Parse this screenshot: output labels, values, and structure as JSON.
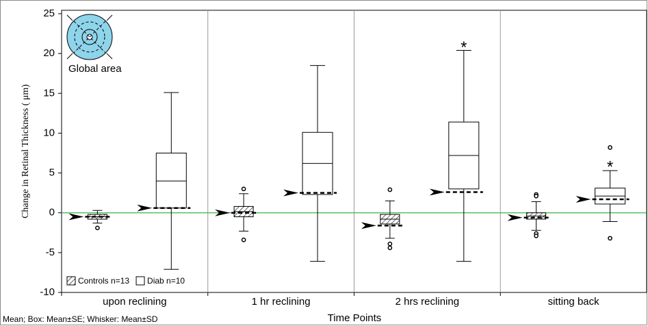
{
  "chart_data": {
    "type": "box",
    "inset_label": "Global area",
    "y_label": "Change in Retinal Thickness ( μm)",
    "x_label": "Time Points",
    "footnote": "Mean; Box: Mean±SE; Whisker: Mean±SD",
    "categories": [
      "upon reclining",
      "1 hr reclining",
      "2 hrs reclining",
      "sitting back"
    ],
    "ylim": [
      -10,
      25
    ],
    "yticks": [
      -10,
      -5,
      0,
      5,
      10,
      15,
      20,
      25
    ],
    "reference_line": {
      "value": 0,
      "color": "#3cb043"
    },
    "series": [
      {
        "name": "Controls n=13",
        "hatched": true,
        "color": "#000000",
        "mean": [
          -0.5,
          0.15,
          -0.8,
          -0.4
        ],
        "box_low": [
          -0.8,
          -0.5,
          -1.4,
          -0.8
        ],
        "box_high": [
          -0.2,
          0.8,
          -0.2,
          0.0
        ],
        "sd_low": [
          -1.3,
          -2.3,
          -3.2,
          -2.2
        ],
        "sd_high": [
          0.3,
          2.4,
          1.5,
          1.4
        ],
        "median": [
          -0.5,
          0.0,
          -1.6,
          -0.6
        ],
        "outliers": [
          [
            -1.9
          ],
          [
            3.0,
            -3.4
          ],
          [
            2.9,
            -3.9,
            -4.4
          ],
          [
            2.3,
            2.1,
            -2.6,
            -2.9
          ]
        ]
      },
      {
        "name": "Diab n=10",
        "hatched": false,
        "color": "#000000",
        "mean": [
          4.0,
          6.2,
          7.2,
          2.1
        ],
        "box_low": [
          0.6,
          2.3,
          3.0,
          1.1
        ],
        "box_high": [
          7.5,
          10.1,
          11.4,
          3.1
        ],
        "sd_low": [
          -7.1,
          -6.1,
          -6.1,
          -1.1
        ],
        "sd_high": [
          15.1,
          18.5,
          20.4,
          5.3
        ],
        "median": [
          0.6,
          2.5,
          2.6,
          1.7
        ],
        "outliers": [
          [],
          [],
          [],
          [
            8.2,
            -3.2
          ]
        ]
      }
    ],
    "annotations": [
      {
        "text": "*",
        "series": 1,
        "category": 2,
        "value": 21.0
      },
      {
        "text": "*",
        "series": 1,
        "category": 3,
        "value": 6.0
      }
    ]
  }
}
